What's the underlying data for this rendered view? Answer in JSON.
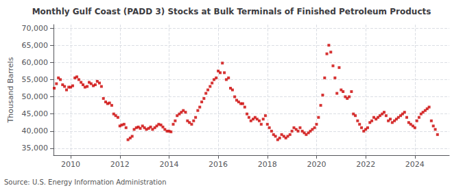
{
  "chart_data": {
    "type": "scatter",
    "title": "Monthly Gulf Coast (PADD 3) Stocks at Bulk Terminals of Finished Petroleum Products",
    "ylabel": "Thousand Barrels",
    "annotation": "Source: U.S. Energy Information Administration",
    "color": "#cc0000",
    "marker": "square",
    "grid": true,
    "xlim": [
      2009.3,
      2025.4
    ],
    "xticks": [
      2010,
      2012,
      2014,
      2016,
      2018,
      2020,
      2022,
      2024
    ],
    "ylim": [
      33000,
      71000
    ],
    "yticks": [
      {
        "value": 35000,
        "label": "35,000"
      },
      {
        "value": 40000,
        "label": "40,000"
      },
      {
        "value": 45000,
        "label": "45,000"
      },
      {
        "value": 50000,
        "label": "50,000"
      },
      {
        "value": 55000,
        "label": "55,000"
      },
      {
        "value": 60000,
        "label": "60,000"
      },
      {
        "value": 65000,
        "label": "65,000"
      },
      {
        "value": 70000,
        "label": "70,000"
      }
    ],
    "x": [
      2009.33,
      2009.42,
      2009.5,
      2009.58,
      2009.67,
      2009.75,
      2009.83,
      2009.92,
      2010.0,
      2010.08,
      2010.17,
      2010.25,
      2010.33,
      2010.42,
      2010.5,
      2010.58,
      2010.67,
      2010.75,
      2010.83,
      2010.92,
      2011.0,
      2011.08,
      2011.17,
      2011.25,
      2011.33,
      2011.42,
      2011.5,
      2011.58,
      2011.67,
      2011.75,
      2011.83,
      2011.92,
      2012.0,
      2012.08,
      2012.17,
      2012.25,
      2012.33,
      2012.42,
      2012.5,
      2012.58,
      2012.67,
      2012.75,
      2012.83,
      2012.92,
      2013.0,
      2013.08,
      2013.17,
      2013.25,
      2013.33,
      2013.42,
      2013.5,
      2013.58,
      2013.67,
      2013.75,
      2013.83,
      2013.92,
      2014.0,
      2014.08,
      2014.17,
      2014.25,
      2014.33,
      2014.42,
      2014.5,
      2014.58,
      2014.67,
      2014.75,
      2014.83,
      2014.92,
      2015.0,
      2015.08,
      2015.17,
      2015.25,
      2015.33,
      2015.42,
      2015.5,
      2015.58,
      2015.67,
      2015.75,
      2015.83,
      2015.92,
      2016.0,
      2016.08,
      2016.17,
      2016.25,
      2016.33,
      2016.42,
      2016.5,
      2016.58,
      2016.67,
      2016.75,
      2016.83,
      2016.92,
      2017.0,
      2017.08,
      2017.17,
      2017.25,
      2017.33,
      2017.42,
      2017.5,
      2017.58,
      2017.67,
      2017.75,
      2017.83,
      2017.92,
      2018.0,
      2018.08,
      2018.17,
      2018.25,
      2018.33,
      2018.42,
      2018.5,
      2018.58,
      2018.67,
      2018.75,
      2018.83,
      2018.92,
      2019.0,
      2019.08,
      2019.17,
      2019.25,
      2019.33,
      2019.42,
      2019.5,
      2019.58,
      2019.67,
      2019.75,
      2019.83,
      2019.92,
      2020.0,
      2020.08,
      2020.17,
      2020.25,
      2020.33,
      2020.42,
      2020.5,
      2020.58,
      2020.67,
      2020.75,
      2020.83,
      2020.92,
      2021.0,
      2021.08,
      2021.17,
      2021.25,
      2021.33,
      2021.42,
      2021.5,
      2021.58,
      2021.67,
      2021.75,
      2021.83,
      2021.92,
      2022.0,
      2022.08,
      2022.17,
      2022.25,
      2022.33,
      2022.42,
      2022.5,
      2022.58,
      2022.67,
      2022.75,
      2022.83,
      2022.92,
      2023.0,
      2023.08,
      2023.17,
      2023.25,
      2023.33,
      2023.42,
      2023.5,
      2023.58,
      2023.67,
      2023.75,
      2023.83,
      2023.92,
      2024.0,
      2024.08,
      2024.17,
      2024.25,
      2024.33,
      2024.42,
      2024.5,
      2024.58,
      2024.67,
      2024.75,
      2024.83,
      2024.92
    ],
    "values": [
      52500,
      53800,
      55500,
      55000,
      53500,
      53000,
      52000,
      52800,
      52800,
      53200,
      55500,
      55800,
      55000,
      54200,
      53500,
      52800,
      53000,
      54200,
      53800,
      53200,
      53500,
      54500,
      54000,
      53000,
      49500,
      48500,
      48000,
      48200,
      47500,
      45000,
      44500,
      44000,
      41500,
      41800,
      42000,
      41000,
      37500,
      38000,
      38500,
      40500,
      41000,
      41200,
      40800,
      41500,
      41000,
      40500,
      40800,
      41200,
      40500,
      41000,
      41500,
      42000,
      41800,
      41200,
      40500,
      40000,
      40000,
      39800,
      42000,
      43000,
      44500,
      45000,
      45500,
      46000,
      45500,
      43000,
      42500,
      42000,
      43000,
      44000,
      46000,
      47000,
      48500,
      49500,
      51000,
      52000,
      53000,
      54000,
      55000,
      55500,
      57500,
      57000,
      59800,
      57000,
      55000,
      55500,
      52500,
      52000,
      50000,
      49000,
      48500,
      48000,
      48000,
      47000,
      45000,
      44000,
      43000,
      43500,
      44000,
      43500,
      43000,
      42000,
      43500,
      44500,
      42000,
      41000,
      40000,
      39000,
      38500,
      37500,
      38000,
      39000,
      38500,
      38000,
      38500,
      39000,
      40000,
      41000,
      40500,
      40000,
      41000,
      40000,
      39500,
      39000,
      39500,
      40000,
      40500,
      41000,
      42000,
      44000,
      47500,
      50500,
      55500,
      62500,
      65000,
      63000,
      59000,
      55500,
      51000,
      58500,
      52000,
      51500,
      50000,
      49500,
      50000,
      51500,
      45000,
      44500,
      43000,
      42000,
      41000,
      40000,
      40500,
      41000,
      42500,
      43000,
      44000,
      43500,
      44000,
      44500,
      45000,
      45500,
      44500,
      43000,
      43500,
      42500,
      43000,
      43500,
      44000,
      44500,
      45000,
      45500,
      44000,
      42500,
      42000,
      41500,
      41000,
      43000,
      44000,
      45000,
      45500,
      46000,
      46500,
      47000,
      43000,
      41500,
      40500,
      39000
    ]
  }
}
